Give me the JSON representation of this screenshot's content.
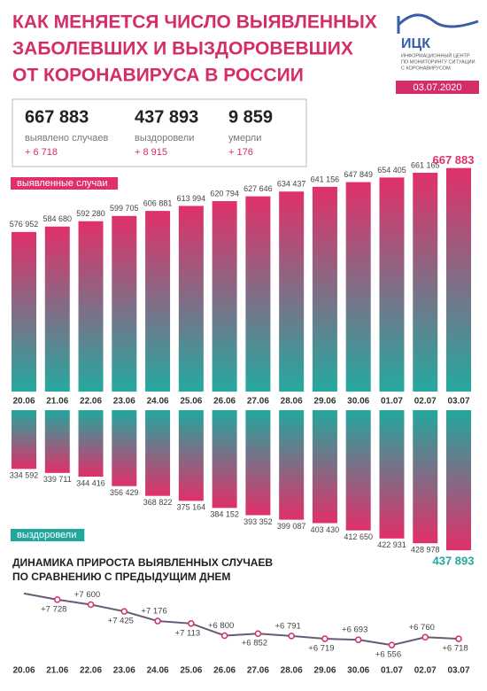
{
  "header": {
    "title": [
      "КАК МЕНЯЕТСЯ ЧИСЛО ВЫЯВЛЕННЫХ",
      "ЗАБОЛЕВШИХ И ВЫЗДОРОВЕВШИХ",
      "ОТ КОРОНАВИРУСА В РОССИИ"
    ],
    "logo": "ИЦК",
    "logo_caption": [
      "ИНФОРМАЦИОННЫЙ ЦЕНТР",
      "ПО МОНИТОРИНГУ СИТУАЦИИ",
      "С КОРОНАВИРУСОМ"
    ],
    "date": "03.07.2020"
  },
  "stats": [
    {
      "value": "667 883",
      "label": "выявлено случаев",
      "change": "+ 6 718"
    },
    {
      "value": "437 893",
      "label": "выздоровели",
      "change": "+ 8 915"
    },
    {
      "value": "9 859",
      "label": "умерли",
      "change": "+ 176"
    }
  ],
  "chart_data": [
    {
      "type": "bar",
      "direction": "up",
      "categories": [
        "20.06",
        "21.06",
        "22.06",
        "23.06",
        "24.06",
        "25.06",
        "26.06",
        "27.06",
        "28.06",
        "29.06",
        "30.06",
        "01.07",
        "02.07",
        "03.07"
      ],
      "ylim": [
        350000,
        670000
      ],
      "series": [
        {
          "name": "выявленные случаи",
          "color": "#e0306a",
          "color2": "#24a9a0",
          "values": [
            576952,
            584680,
            592280,
            599705,
            606881,
            613994,
            620794,
            627646,
            634437,
            641156,
            647849,
            654405,
            661165,
            667883
          ],
          "value_labels": [
            "576 952",
            "584 680",
            "592 280",
            "599 705",
            "606 881",
            "613 994",
            "620 794",
            "627 646",
            "634 437",
            "641 156",
            "647 849",
            "654 405",
            "661 165",
            "667 883"
          ]
        }
      ]
    },
    {
      "type": "bar",
      "direction": "down",
      "ylim": [
        260000,
        440000
      ],
      "series": [
        {
          "name": "выздоровели",
          "color": "#22a79e",
          "color2": "#e0306a",
          "values": [
            334592,
            339711,
            344416,
            356429,
            368822,
            375164,
            384152,
            393352,
            399087,
            403430,
            412650,
            422931,
            428978,
            437893
          ],
          "value_labels": [
            "334 592",
            "339 711",
            "344 416",
            "356 429",
            "368 822",
            "375 164",
            "384 152",
            "393 352",
            "399 087",
            "403 430",
            "412 650",
            "422 931",
            "428 978",
            "437 893"
          ]
        }
      ]
    },
    {
      "type": "line",
      "title": [
        "ДИНАМИКА ПРИРОСТА ВЫЯВЛЕННЫХ СЛУЧАЕВ",
        "ПО СРАВНЕНИЮ С ПРЕДЫДУЩИМ ДНЕМ"
      ],
      "categories": [
        "20.06",
        "21.06",
        "22.06",
        "23.06",
        "24.06",
        "25.06",
        "26.06",
        "27.06",
        "28.06",
        "29.06",
        "30.06",
        "01.07",
        "02.07",
        "03.07"
      ],
      "ylim": [
        6400,
        8000
      ],
      "series": [
        {
          "name": null,
          "color": "#6a5a78",
          "values": [
            7889,
            7728,
            7600,
            7425,
            7176,
            7113,
            6800,
            6852,
            6791,
            6719,
            6693,
            6556,
            6760,
            6718
          ],
          "value_labels": [
            null,
            "+7 728",
            "+7 600",
            "+7 425",
            "+7 176",
            "+7 113",
            "+6 800",
            "+6 852",
            "+6 791",
            "+6 719",
            "+6 693",
            "+6 556",
            "+6 760",
            "+6 718"
          ]
        }
      ]
    }
  ]
}
